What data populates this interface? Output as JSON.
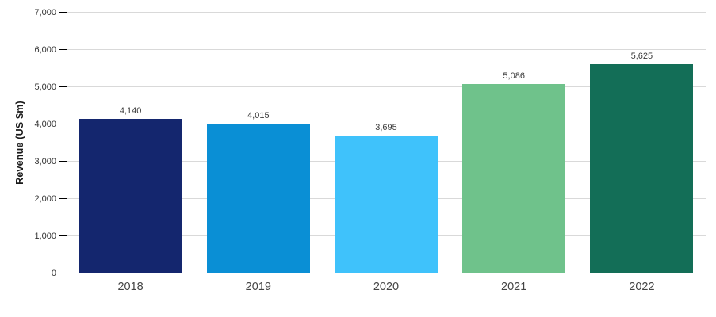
{
  "chart_data": {
    "type": "bar",
    "title": "",
    "xlabel": "",
    "ylabel": "Revenue (US $m)",
    "categories": [
      "2018",
      "2019",
      "2020",
      "2021",
      "2022"
    ],
    "values": [
      4140,
      4015,
      3695,
      5086,
      5625
    ],
    "value_labels": [
      "4,140",
      "4,015",
      "3,695",
      "5,086",
      "5,625"
    ],
    "bar_colors": [
      "#14266e",
      "#0a8fd5",
      "#3fc2fb",
      "#6fc28b",
      "#136e57"
    ],
    "ylim": [
      0,
      7000
    ],
    "yticks": [
      0,
      1000,
      2000,
      3000,
      4000,
      5000,
      6000,
      7000
    ],
    "ytick_labels": [
      "0",
      "1,000",
      "2,000",
      "3,000",
      "4,000",
      "5,000",
      "6,000",
      "7,000"
    ],
    "grid": true,
    "legend": false
  },
  "colors": {
    "background": "#ffffff",
    "gridline": "#d9d9d9",
    "axis_line": "#000000",
    "tick_mark": "#000000",
    "ytick_label": "#333333",
    "xtick_label": "#444444",
    "value_label": "#3a3a3a"
  }
}
